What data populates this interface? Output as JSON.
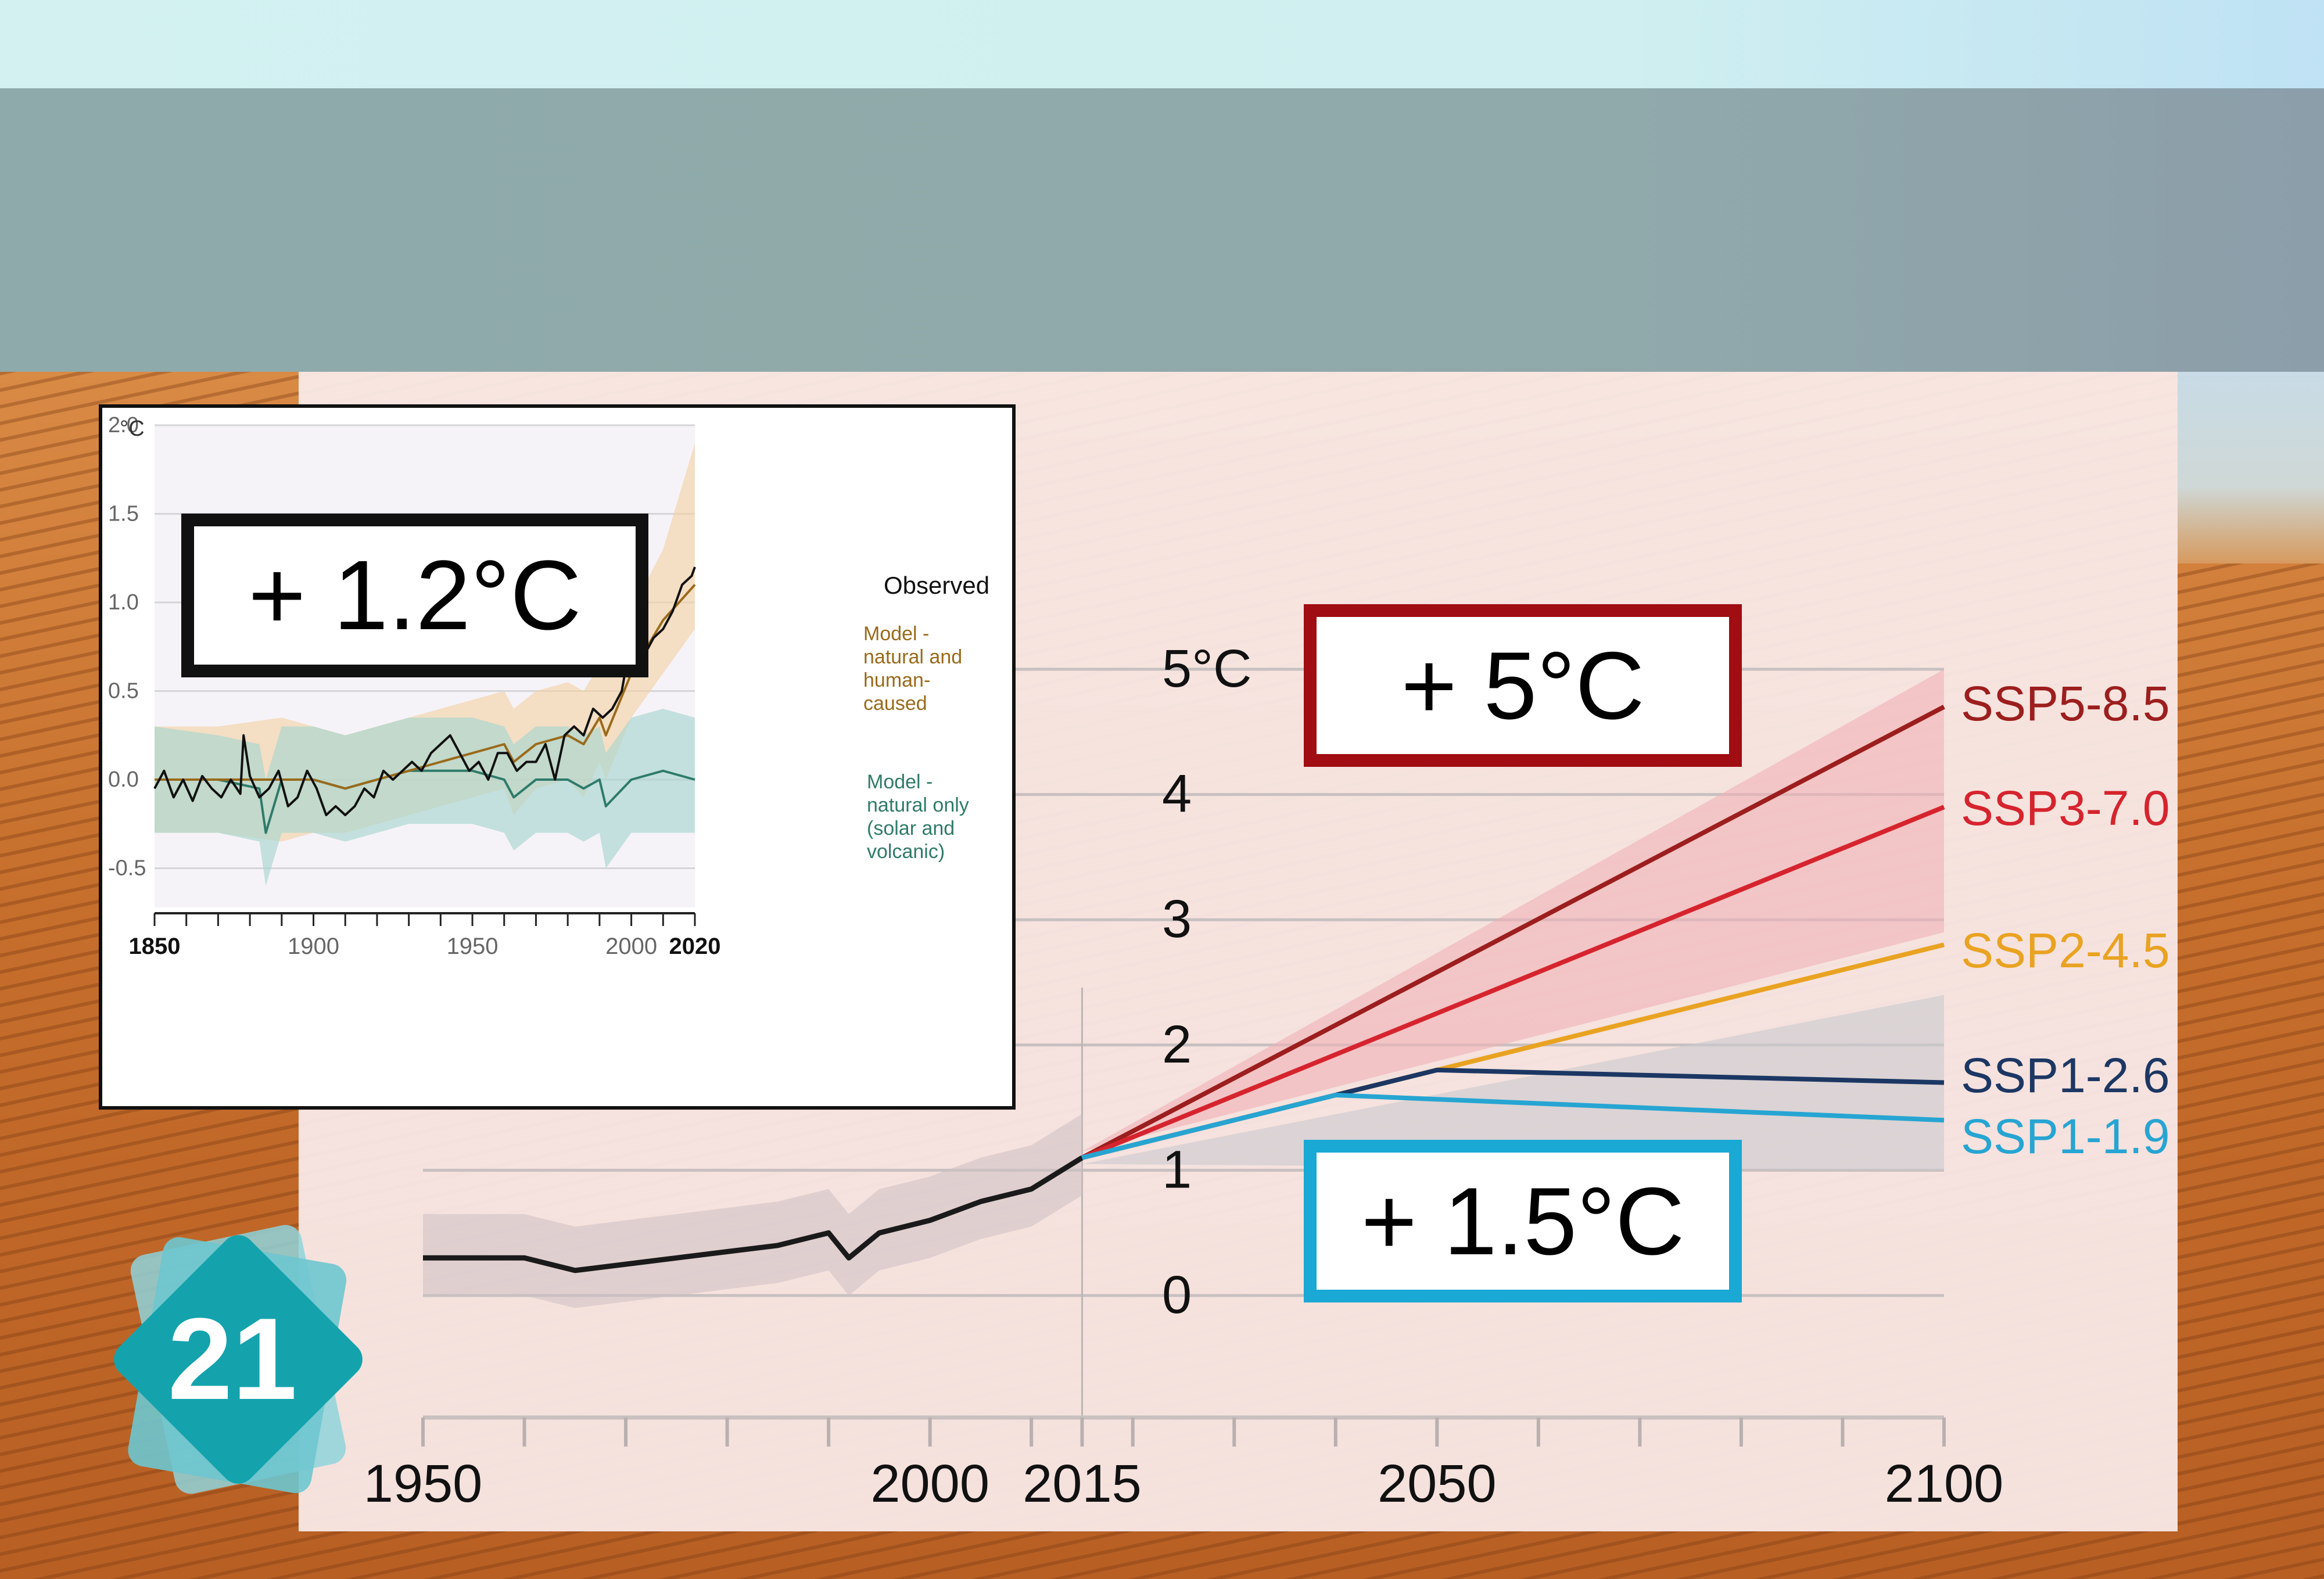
{
  "callouts": {
    "historical": "+ 1.2°C",
    "high": "+ 5°C",
    "low": "+ 1.5°C"
  },
  "slide_number": "21",
  "chart_data": [
    {
      "type": "line",
      "title": "",
      "y_unit": "°C",
      "xlim": [
        1850,
        2020
      ],
      "ylim": [
        -0.5,
        2.0
      ],
      "ytick_labels": [
        "2.0",
        "1.5",
        "1.0",
        "0.5",
        "0.0",
        "-0.5"
      ],
      "xtick_labels": [
        "1850",
        "1900",
        "1950",
        "2000",
        "2020"
      ],
      "grid": true,
      "legend_placement": "right",
      "series": [
        {
          "name": "Observed",
          "color": "#111111",
          "x": [
            1850,
            1853,
            1856,
            1859,
            1862,
            1865,
            1868,
            1871,
            1874,
            1877,
            1878,
            1880,
            1883,
            1886,
            1889,
            1892,
            1895,
            1898,
            1901,
            1904,
            1907,
            1910,
            1913,
            1916,
            1919,
            1922,
            1925,
            1928,
            1931,
            1934,
            1937,
            1940,
            1943,
            1946,
            1949,
            1952,
            1955,
            1958,
            1961,
            1964,
            1967,
            1970,
            1973,
            1976,
            1979,
            1982,
            1985,
            1988,
            1991,
            1994,
            1997,
            1998,
            2001,
            2004,
            2007,
            2010,
            2013,
            2016,
            2019,
            2020
          ],
          "y": [
            -0.05,
            0.05,
            -0.1,
            0.0,
            -0.12,
            0.02,
            -0.05,
            -0.1,
            0.0,
            -0.08,
            0.25,
            0.02,
            -0.1,
            -0.05,
            0.05,
            -0.15,
            -0.1,
            0.05,
            -0.05,
            -0.2,
            -0.15,
            -0.2,
            -0.15,
            -0.05,
            -0.1,
            0.05,
            0.0,
            0.05,
            0.1,
            0.05,
            0.15,
            0.2,
            0.25,
            0.15,
            0.05,
            0.1,
            0.0,
            0.15,
            0.15,
            0.05,
            0.1,
            0.1,
            0.2,
            0.0,
            0.25,
            0.3,
            0.25,
            0.4,
            0.35,
            0.4,
            0.5,
            0.6,
            0.6,
            0.7,
            0.8,
            0.85,
            0.95,
            1.1,
            1.15,
            1.2
          ]
        },
        {
          "name": "Model - natural and human-caused",
          "color": "#9a6a1a",
          "band_color": "#f2d3a7",
          "x": [
            1850,
            1870,
            1890,
            1900,
            1910,
            1920,
            1930,
            1940,
            1950,
            1960,
            1963,
            1970,
            1980,
            1985,
            1990,
            1992,
            2000,
            2010,
            2020
          ],
          "y": [
            0.0,
            0.0,
            0.0,
            0.0,
            -0.05,
            0.0,
            0.05,
            0.1,
            0.15,
            0.2,
            0.1,
            0.2,
            0.25,
            0.2,
            0.35,
            0.25,
            0.6,
            0.9,
            1.1
          ],
          "band_low": [
            -0.3,
            -0.3,
            -0.35,
            -0.3,
            -0.3,
            -0.25,
            -0.2,
            -0.15,
            -0.1,
            -0.05,
            -0.2,
            -0.05,
            0.0,
            -0.1,
            0.1,
            0.0,
            0.35,
            0.6,
            0.85
          ],
          "band_high": [
            0.3,
            0.3,
            0.35,
            0.3,
            0.25,
            0.3,
            0.35,
            0.4,
            0.45,
            0.5,
            0.4,
            0.5,
            0.55,
            0.5,
            0.65,
            0.6,
            0.95,
            1.3,
            1.9
          ]
        },
        {
          "name": "Model - natural only (solar and volcanic)",
          "color": "#2f7b6a",
          "band_color": "#a8d6d0",
          "x": [
            1850,
            1870,
            1883,
            1885,
            1890,
            1900,
            1910,
            1920,
            1930,
            1940,
            1950,
            1960,
            1963,
            1970,
            1980,
            1985,
            1990,
            1992,
            2000,
            2010,
            2020
          ],
          "y": [
            0.0,
            0.0,
            -0.05,
            -0.3,
            0.0,
            0.0,
            -0.05,
            0.0,
            0.05,
            0.05,
            0.05,
            0.0,
            -0.1,
            0.0,
            0.0,
            -0.05,
            0.0,
            -0.15,
            0.0,
            0.05,
            0.0
          ],
          "band_low": [
            -0.3,
            -0.3,
            -0.35,
            -0.6,
            -0.3,
            -0.3,
            -0.35,
            -0.3,
            -0.25,
            -0.25,
            -0.25,
            -0.3,
            -0.4,
            -0.3,
            -0.3,
            -0.35,
            -0.3,
            -0.5,
            -0.3,
            -0.3,
            -0.3
          ],
          "band_high": [
            0.3,
            0.25,
            0.2,
            0.0,
            0.3,
            0.3,
            0.25,
            0.3,
            0.35,
            0.35,
            0.35,
            0.3,
            0.2,
            0.3,
            0.3,
            0.25,
            0.3,
            0.15,
            0.35,
            0.4,
            0.35
          ]
        }
      ]
    },
    {
      "type": "line",
      "title": "",
      "xlim": [
        1950,
        2100
      ],
      "ylim": [
        0,
        5
      ],
      "ytick_labels": [
        "5°C",
        "4",
        "3",
        "2",
        "1",
        "0"
      ],
      "xtick_labels": [
        "1950",
        "2000",
        "2015",
        "2050",
        "2100"
      ],
      "grid": true,
      "legend_placement": "right",
      "series": [
        {
          "name": "",
          "color": "#1a1a1a",
          "x": [
            1950,
            1960,
            1965,
            1970,
            1975,
            1980,
            1985,
            1990,
            1992,
            1995,
            2000,
            2005,
            2010,
            2015
          ],
          "y": [
            0.3,
            0.3,
            0.2,
            0.25,
            0.3,
            0.35,
            0.4,
            0.5,
            0.3,
            0.5,
            0.6,
            0.75,
            0.85,
            1.1
          ]
        },
        {
          "name": "SSP5-8.5",
          "color": "#9c1e1e",
          "x": [
            2015,
            2100
          ],
          "y": [
            1.1,
            4.7
          ]
        },
        {
          "name": "SSP3-7.0",
          "color": "#d6242e",
          "x": [
            2015,
            2100
          ],
          "y": [
            1.1,
            3.9
          ]
        },
        {
          "name": "SSP2-4.5",
          "color": "#e9a322",
          "x": [
            2015,
            2100
          ],
          "y": [
            1.1,
            2.8
          ]
        },
        {
          "name": "SSP1-2.6",
          "color": "#1c3763",
          "x": [
            2015,
            2050,
            2100
          ],
          "y": [
            1.1,
            1.8,
            1.7
          ]
        },
        {
          "name": "SSP1-1.9",
          "color": "#27a5d2",
          "x": [
            2015,
            2040,
            2100
          ],
          "y": [
            1.1,
            1.6,
            1.4
          ]
        }
      ]
    }
  ],
  "colors": {
    "accent_red": "#a00d12",
    "accent_blue": "#1aa8d4",
    "badge_teal": "#14a3ad"
  }
}
